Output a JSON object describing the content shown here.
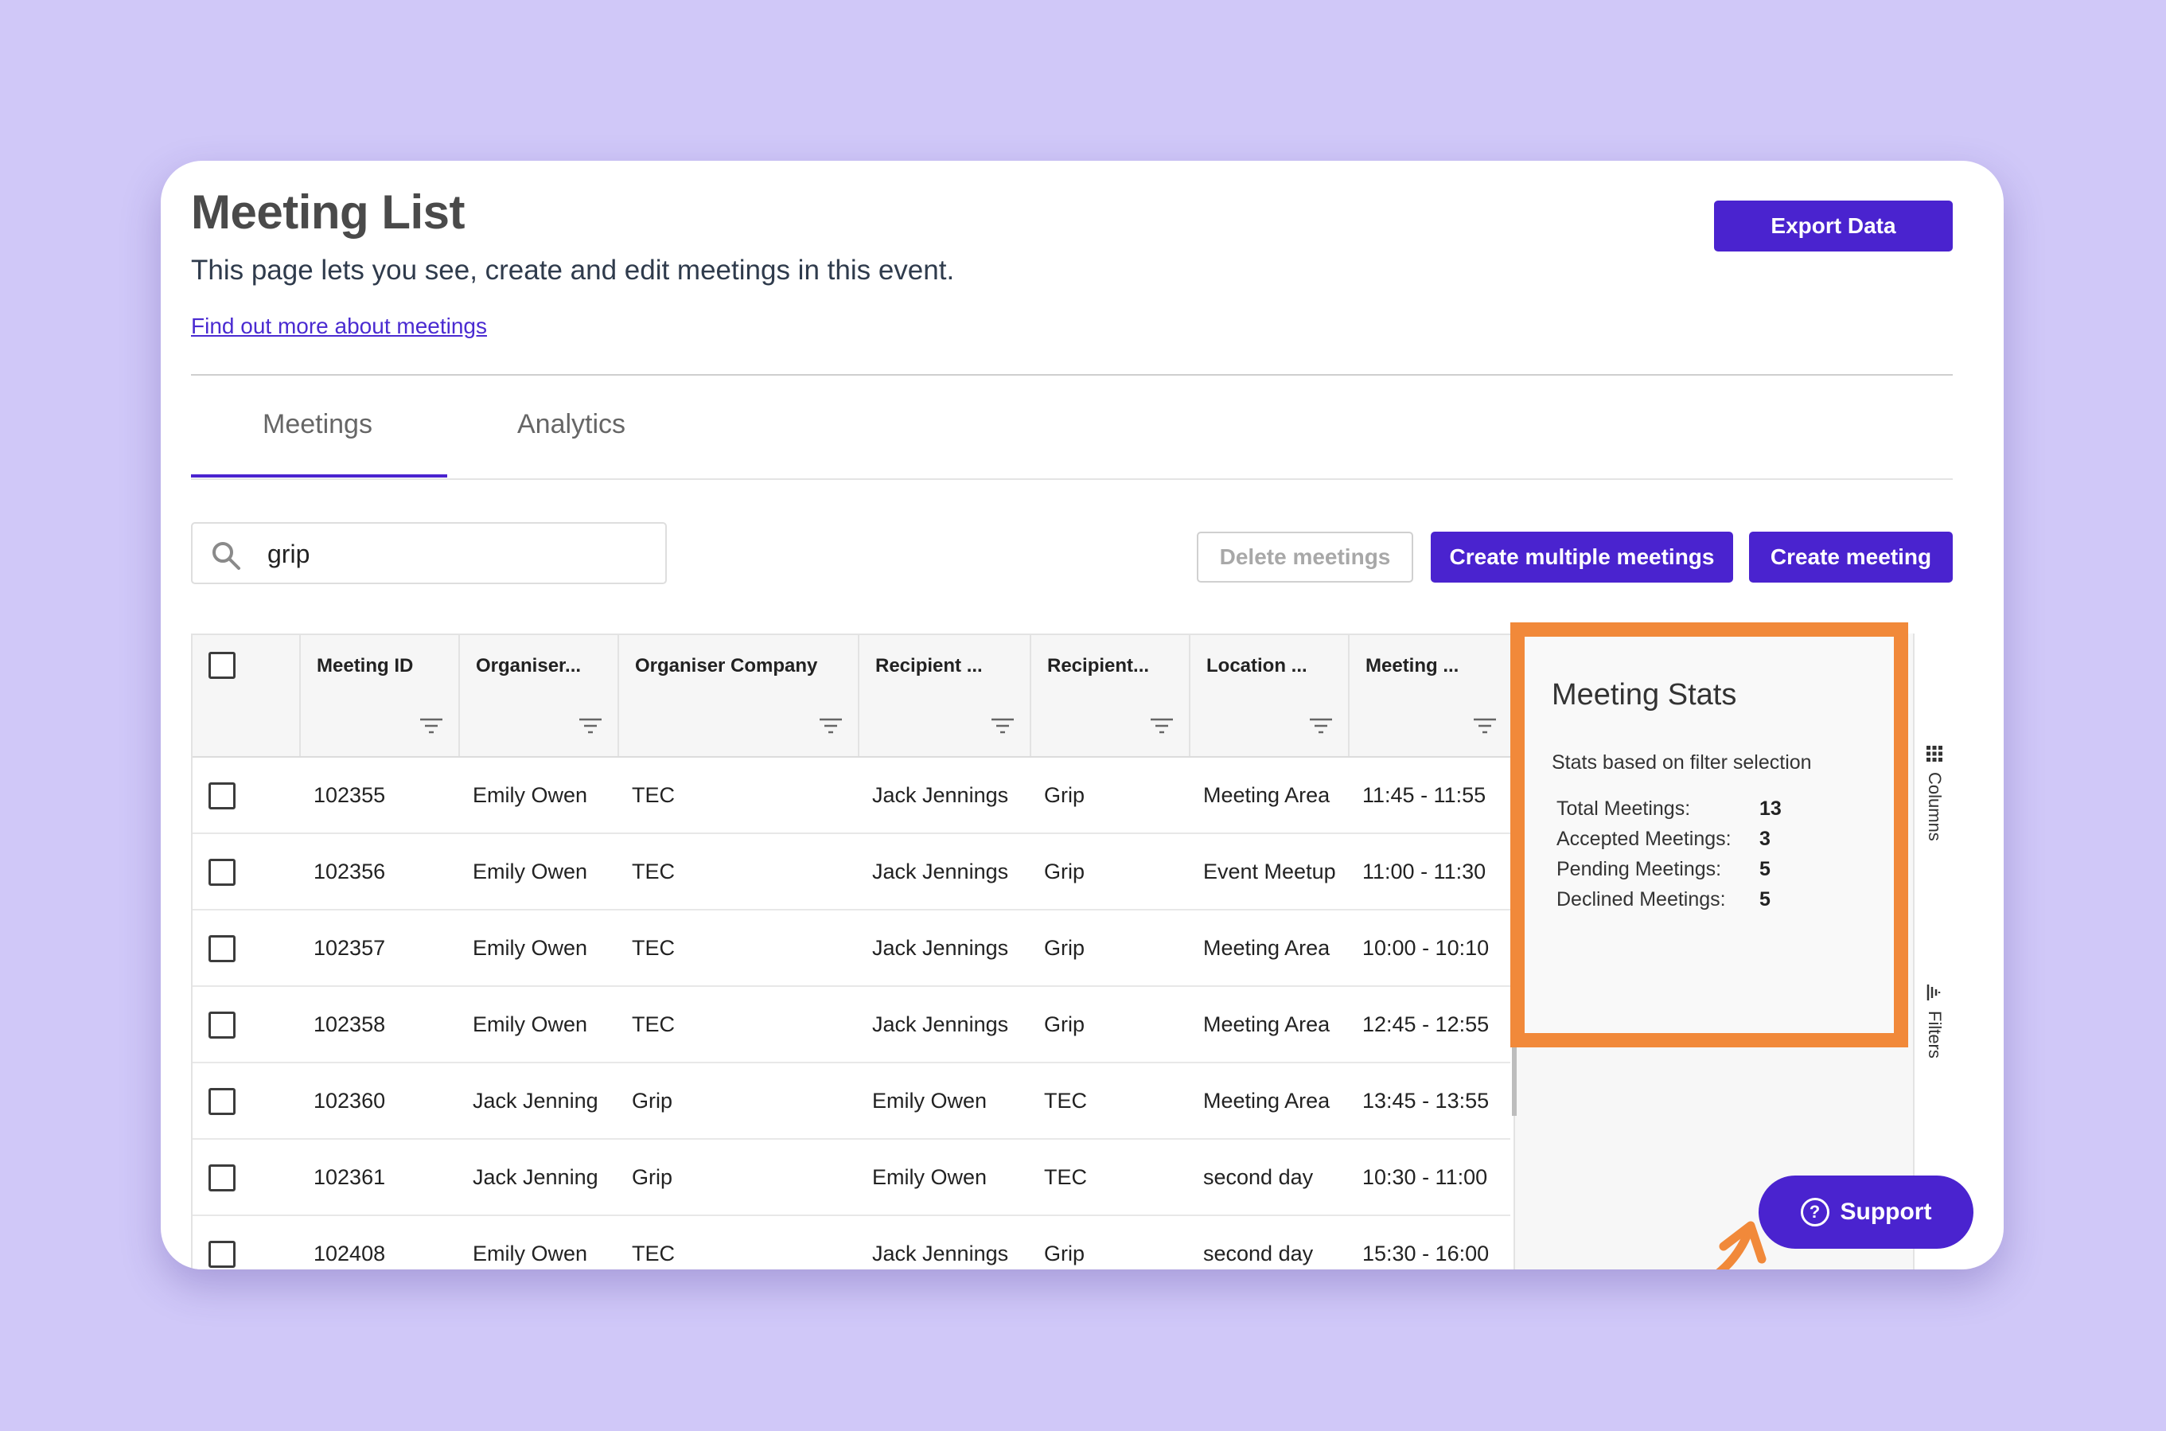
{
  "header": {
    "title": "Meeting List",
    "subtitle": "This page lets you see, create and edit meetings in this event.",
    "learn_link": "Find out more about meetings",
    "export_label": "Export Data"
  },
  "tabs": [
    {
      "label": "Meetings",
      "active": true
    },
    {
      "label": "Analytics",
      "active": false
    }
  ],
  "search": {
    "value": "grip",
    "icon": "search-icon"
  },
  "toolbar": {
    "delete_label": "Delete meetings",
    "create_multiple_label": "Create multiple meetings",
    "create_label": "Create meeting"
  },
  "table": {
    "columns": [
      "Meeting ID",
      "Organiser...",
      "Organiser Company",
      "Recipient ...",
      "Recipient...",
      "Location ...",
      "Meeting ..."
    ],
    "rows": [
      [
        "102355",
        "Emily Owen",
        "TEC",
        "Jack Jennings",
        "Grip",
        "Meeting Area",
        "11:45 - 11:55"
      ],
      [
        "102356",
        "Emily Owen",
        "TEC",
        "Jack Jennings",
        "Grip",
        "Event Meetup",
        "11:00 - 11:30"
      ],
      [
        "102357",
        "Emily Owen",
        "TEC",
        "Jack Jennings",
        "Grip",
        "Meeting Area",
        "10:00 - 10:10"
      ],
      [
        "102358",
        "Emily Owen",
        "TEC",
        "Jack Jennings",
        "Grip",
        "Meeting Area",
        "12:45 - 12:55"
      ],
      [
        "102360",
        "Jack Jenning",
        "Grip",
        "Emily Owen",
        "TEC",
        "Meeting Area",
        "13:45 - 13:55"
      ],
      [
        "102361",
        "Jack Jenning",
        "Grip",
        "Emily Owen",
        "TEC",
        "second day",
        "10:30 - 11:00"
      ],
      [
        "102408",
        "Emily Owen",
        "TEC",
        "Jack Jennings",
        "Grip",
        "second day",
        "15:30 - 16:00"
      ]
    ]
  },
  "stats": {
    "title": "Meeting Stats",
    "subtitle": "Stats based on filter selection",
    "items": [
      {
        "label": "Total Meetings:",
        "value": "13"
      },
      {
        "label": "Accepted Meetings:",
        "value": "3"
      },
      {
        "label": "Pending Meetings:",
        "value": "5"
      },
      {
        "label": "Declined Meetings:",
        "value": "5"
      }
    ]
  },
  "side_tabs": {
    "columns": "Columns",
    "filters": "Filters"
  },
  "support": {
    "label": "Support"
  },
  "colors": {
    "accent": "#4a23cf",
    "highlight": "#f1893a",
    "background": "#d0c8f8"
  }
}
